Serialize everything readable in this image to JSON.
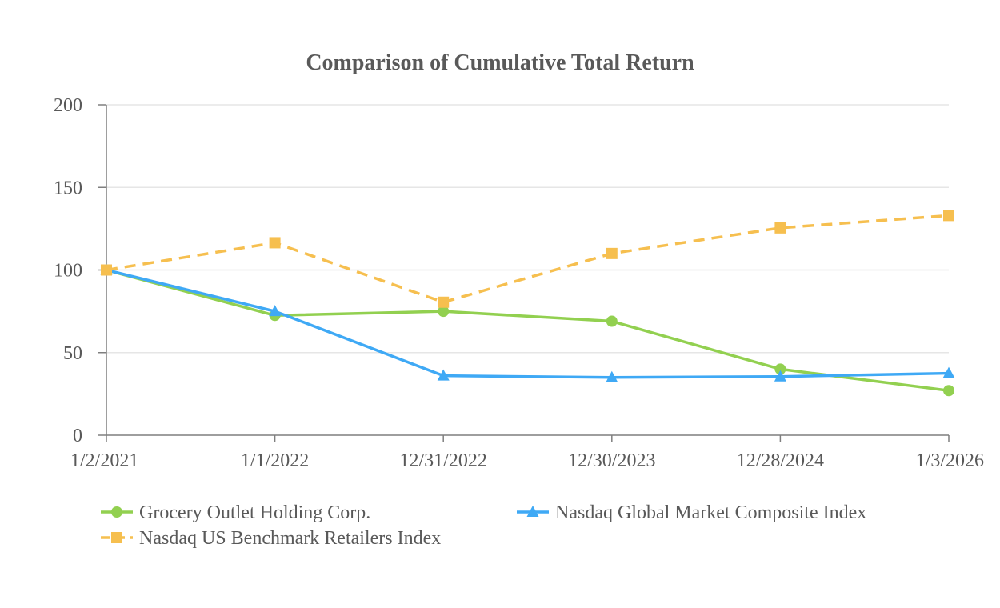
{
  "chart_data": {
    "type": "line",
    "title": "Comparison of Cumulative Total Return",
    "xlabel": "",
    "ylabel": "",
    "categories": [
      "1/2/2021",
      "1/1/2022",
      "12/31/2022",
      "12/30/2023",
      "12/28/2024",
      "1/3/2026"
    ],
    "ylim": [
      0,
      200
    ],
    "yticks": [
      0,
      50,
      100,
      150,
      200
    ],
    "grid": true,
    "legend_position": "bottom",
    "series": [
      {
        "name": "Grocery Outlet Holding Corp.",
        "marker": "circle",
        "line_style": "solid",
        "color": "#92d050",
        "values": [
          100,
          72.5,
          75,
          69,
          40,
          27
        ]
      },
      {
        "name": "Nasdaq Global Market Composite Index",
        "marker": "triangle",
        "line_style": "solid",
        "color": "#3fa9f5",
        "values": [
          100,
          75,
          36,
          35,
          35.5,
          37.5
        ]
      },
      {
        "name": "Nasdaq US Benchmark Retailers Index",
        "marker": "square",
        "line_style": "dashed",
        "color": "#f6bf4f",
        "values": [
          100,
          116.5,
          80.5,
          110,
          125.5,
          133
        ]
      }
    ]
  },
  "colors": {
    "axis": "#7f7f7f",
    "grid": "#e6e6e6",
    "text": "#595959"
  }
}
